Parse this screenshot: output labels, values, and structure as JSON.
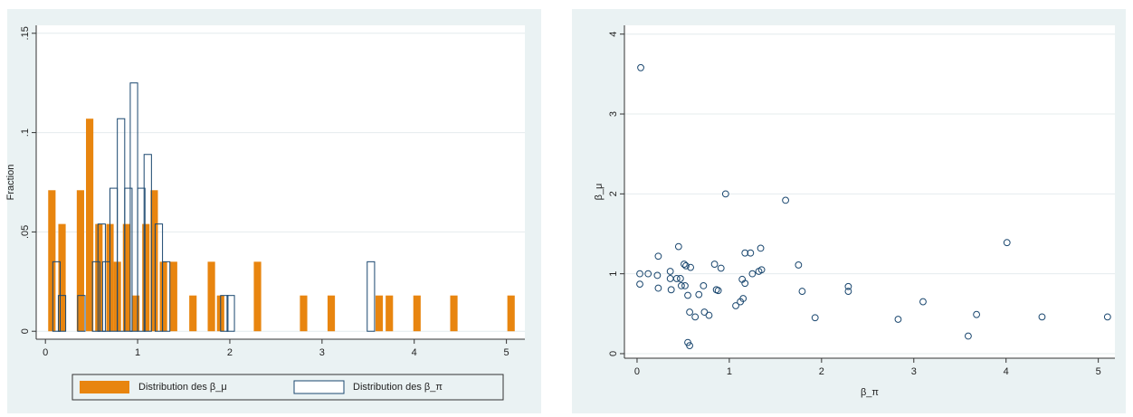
{
  "chart_data": [
    {
      "type": "bar",
      "ylabel": "Fraction",
      "xlim": [
        -0.1,
        5.2
      ],
      "ylim": [
        -0.004,
        0.154
      ],
      "xticks": [
        0,
        1,
        2,
        3,
        4,
        5
      ],
      "yticks": [
        0,
        {
          "value": 0.05,
          "label": ".05"
        },
        {
          "value": 0.1,
          "label": ".1"
        },
        {
          "value": 0.15,
          "label": ".15"
        }
      ],
      "grid": true,
      "series": [
        {
          "name": "Distribution des β_μ",
          "color": "#e8850f",
          "fill": true,
          "x": [
            0.07,
            0.18,
            0.38,
            0.48,
            0.58,
            0.7,
            0.78,
            0.88,
            0.98,
            1.09,
            1.18,
            1.28,
            1.39,
            1.6,
            1.8,
            1.9,
            2.3,
            2.8,
            3.1,
            3.62,
            3.73,
            4.03,
            4.43,
            5.05
          ],
          "values": [
            0.071,
            0.054,
            0.071,
            0.107,
            0.054,
            0.054,
            0.035,
            0.054,
            0.018,
            0.054,
            0.071,
            0.035,
            0.035,
            0.018,
            0.035,
            0.018,
            0.035,
            0.018,
            0.018,
            0.018,
            0.018,
            0.018,
            0.018,
            0.018
          ]
        },
        {
          "name": "Distribution des β_π",
          "color": "#1a476f",
          "fill": false,
          "x": [
            0.12,
            0.18,
            0.39,
            0.55,
            0.61,
            0.66,
            0.74,
            0.82,
            0.9,
            0.96,
            1.04,
            1.11,
            1.23,
            1.31,
            1.94,
            2.01,
            3.53
          ],
          "values": [
            0.035,
            0.018,
            0.018,
            0.035,
            0.054,
            0.035,
            0.072,
            0.107,
            0.072,
            0.125,
            0.072,
            0.089,
            0.054,
            0.035,
            0.018,
            0.018,
            0.035
          ]
        }
      ]
    },
    {
      "type": "scatter",
      "xlabel": "β_π",
      "ylabel": "β_μ",
      "xlim": [
        -0.137,
        5.18
      ],
      "ylim": [
        -0.057,
        4.11
      ],
      "xticks": [
        0,
        1,
        2,
        3,
        4,
        5
      ],
      "yticks": [
        0,
        1,
        2,
        3,
        4
      ],
      "grid": true,
      "color": "#1a476f",
      "x": [
        0.04,
        0.03,
        0.12,
        0.03,
        0.23,
        0.22,
        0.23,
        0.36,
        0.36,
        0.37,
        0.45,
        0.43,
        0.47,
        0.48,
        0.51,
        0.53,
        0.52,
        0.58,
        0.55,
        0.57,
        0.55,
        0.57,
        0.63,
        0.67,
        0.72,
        0.73,
        0.78,
        0.84,
        0.86,
        0.88,
        0.91,
        0.96,
        1.07,
        1.12,
        1.15,
        1.14,
        1.17,
        1.17,
        1.23,
        1.25,
        1.32,
        1.35,
        1.34,
        1.61,
        1.75,
        1.79,
        1.93,
        2.29,
        2.29,
        2.83,
        3.1,
        3.59,
        3.68,
        4.01,
        4.39,
        5.1
      ],
      "y": [
        3.58,
        1.0,
        1.0,
        0.87,
        1.22,
        0.98,
        0.82,
        1.03,
        0.94,
        0.8,
        1.34,
        0.94,
        0.94,
        0.85,
        1.12,
        1.1,
        0.85,
        1.08,
        0.73,
        0.52,
        0.14,
        0.1,
        0.46,
        0.74,
        0.85,
        0.52,
        0.48,
        1.12,
        0.8,
        0.79,
        1.07,
        2.0,
        0.6,
        0.65,
        0.69,
        0.93,
        0.88,
        1.26,
        1.26,
        1.0,
        1.03,
        1.05,
        1.32,
        1.92,
        1.11,
        0.78,
        0.45,
        0.84,
        0.78,
        0.43,
        0.65,
        0.22,
        0.49,
        1.39,
        0.46,
        0.46
      ]
    }
  ]
}
